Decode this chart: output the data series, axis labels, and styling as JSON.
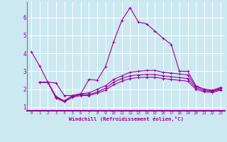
{
  "background_color": "#cce8f0",
  "grid_color": "#aaddee",
  "line_color": "#990099",
  "xlabel": "Windchill (Refroidissement éolien,°C)",
  "xlim": [
    -0.5,
    23.5
  ],
  "ylim": [
    0.8,
    6.9
  ],
  "yticks": [
    1,
    2,
    3,
    4,
    5,
    6
  ],
  "xticks": [
    0,
    1,
    2,
    3,
    4,
    5,
    6,
    7,
    8,
    9,
    10,
    11,
    12,
    13,
    14,
    15,
    16,
    17,
    18,
    19,
    20,
    21,
    22,
    23
  ],
  "series": [
    {
      "x": [
        0,
        1,
        2,
        3,
        4,
        5,
        6,
        7,
        8,
        9,
        10,
        11,
        12,
        13,
        14,
        15,
        16,
        17,
        18,
        19,
        20,
        21,
        22,
        23
      ],
      "y": [
        4.1,
        3.3,
        2.4,
        2.35,
        1.65,
        1.65,
        1.75,
        2.55,
        2.5,
        3.25,
        4.65,
        5.85,
        6.55,
        5.75,
        5.65,
        5.25,
        4.85,
        4.5,
        3.0,
        3.0,
        2.2,
        2.0,
        1.9,
        2.05
      ]
    },
    {
      "x": [
        1,
        2,
        3,
        4,
        5,
        6,
        7,
        8,
        9,
        10,
        11,
        12,
        13,
        14,
        15,
        16,
        17,
        18,
        19,
        20,
        21,
        22,
        23
      ],
      "y": [
        2.4,
        2.4,
        1.6,
        1.35,
        1.65,
        1.75,
        1.8,
        2.0,
        2.2,
        2.55,
        2.75,
        2.95,
        3.0,
        3.05,
        3.05,
        2.95,
        2.9,
        2.85,
        2.8,
        2.15,
        2.0,
        1.95,
        2.1
      ]
    },
    {
      "x": [
        1,
        2,
        3,
        4,
        5,
        6,
        7,
        8,
        9,
        10,
        11,
        12,
        13,
        14,
        15,
        16,
        17,
        18,
        19,
        20,
        21,
        22,
        23
      ],
      "y": [
        2.4,
        2.4,
        1.55,
        1.35,
        1.6,
        1.7,
        1.7,
        1.85,
        2.05,
        2.4,
        2.6,
        2.75,
        2.8,
        2.82,
        2.82,
        2.75,
        2.7,
        2.65,
        2.6,
        2.08,
        1.92,
        1.88,
        2.0
      ]
    },
    {
      "x": [
        1,
        2,
        3,
        4,
        5,
        6,
        7,
        8,
        9,
        10,
        11,
        12,
        13,
        14,
        15,
        16,
        17,
        18,
        19,
        20,
        21,
        22,
        23
      ],
      "y": [
        2.38,
        2.38,
        1.5,
        1.3,
        1.55,
        1.65,
        1.65,
        1.78,
        1.95,
        2.25,
        2.45,
        2.6,
        2.65,
        2.67,
        2.67,
        2.6,
        2.55,
        2.5,
        2.45,
        2.0,
        1.85,
        1.82,
        1.95
      ]
    }
  ]
}
